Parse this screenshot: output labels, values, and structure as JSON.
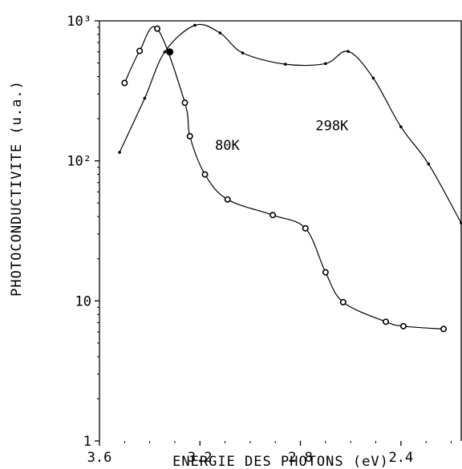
{
  "chart_data": {
    "type": "line",
    "xlabel": "ENERGIE DES PHOTONS (eV)",
    "ylabel": "PHOTOCONDUCTIVITE (u.a.)",
    "x_scale": "linear",
    "x_reversed": true,
    "xlim": [
      3.6,
      2.16
    ],
    "xticks": [
      3.6,
      3.2,
      2.8,
      2.4
    ],
    "x_tick_labels": [
      "3.6",
      "3.2",
      "2.8",
      "2.4"
    ],
    "y_scale": "log",
    "ylim": [
      1,
      1000
    ],
    "yticks": [
      1,
      10,
      100,
      1000
    ],
    "y_tick_labels": [
      "1",
      "10",
      "10²",
      "10³"
    ],
    "grid": false,
    "series": [
      {
        "name": "298K",
        "marker": "dot",
        "points": [
          {
            "x": 3.52,
            "y": 115
          },
          {
            "x": 3.42,
            "y": 280
          },
          {
            "x": 3.34,
            "y": 600
          },
          {
            "x": 3.22,
            "y": 930
          },
          {
            "x": 3.12,
            "y": 820
          },
          {
            "x": 3.03,
            "y": 590
          },
          {
            "x": 2.86,
            "y": 490
          },
          {
            "x": 2.7,
            "y": 495
          },
          {
            "x": 2.61,
            "y": 605
          },
          {
            "x": 2.51,
            "y": 390
          },
          {
            "x": 2.4,
            "y": 175
          },
          {
            "x": 2.29,
            "y": 95
          },
          {
            "x": 2.16,
            "y": 36
          }
        ]
      },
      {
        "name": "80K",
        "marker": "circle",
        "points": [
          {
            "x": 3.5,
            "y": 360
          },
          {
            "x": 3.44,
            "y": 610
          },
          {
            "x": 3.37,
            "y": 880
          },
          {
            "x": 3.26,
            "y": 260
          },
          {
            "x": 3.24,
            "y": 150
          },
          {
            "x": 3.18,
            "y": 80
          },
          {
            "x": 3.09,
            "y": 53
          },
          {
            "x": 2.91,
            "y": 41
          },
          {
            "x": 2.78,
            "y": 33
          },
          {
            "x": 2.7,
            "y": 16
          },
          {
            "x": 2.63,
            "y": 9.8
          },
          {
            "x": 2.46,
            "y": 7.1
          },
          {
            "x": 2.39,
            "y": 6.6
          },
          {
            "x": 2.23,
            "y": 6.3
          }
        ]
      }
    ],
    "crossing_point": {
      "x": 3.32,
      "y": 600
    },
    "annotations": [
      {
        "text": "298K",
        "series": "298K"
      },
      {
        "text": "80K",
        "series": "80K"
      }
    ]
  }
}
